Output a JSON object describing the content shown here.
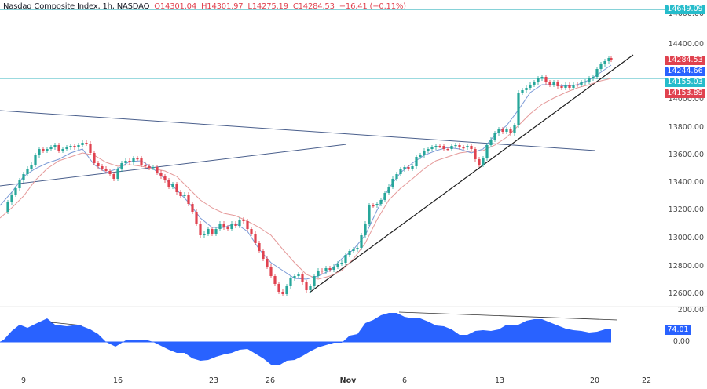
{
  "header": {
    "symbol": "Nasdaq Composite Index, 1h, NASDAQ",
    "open": "O14301.04",
    "high": "H14301.97",
    "low": "L14275.19",
    "close": "C14284.53",
    "change": "−16.41 (−0.11%)"
  },
  "price_axis": {
    "ticks": [
      "14600.00",
      "14400.00",
      "14000.00",
      "13800.00",
      "13600.00",
      "13400.00",
      "13200.00",
      "13000.00",
      "12800.00",
      "12600.00"
    ],
    "tags": [
      {
        "label": "14649.09",
        "color": "#26bccb"
      },
      {
        "label": "14284.53",
        "color": "#e0424f"
      },
      {
        "label": "14244.66",
        "color": "#2962ff"
      },
      {
        "label": "14155.03",
        "color": "#26bccb"
      },
      {
        "label": "14153.89",
        "color": "#e0424f"
      }
    ]
  },
  "oscillator_axis": {
    "ticks": [
      "200.00",
      "0.00"
    ],
    "value_tag": {
      "label": "74.01",
      "color": "#2962ff"
    }
  },
  "time_axis": {
    "labels": [
      "9",
      "16",
      "23",
      "26",
      "Nov",
      "6",
      "13",
      "20",
      "22"
    ]
  },
  "colors": {
    "up": "#26a69a",
    "down": "#e0424f",
    "fast_ma": "#7b9ad6",
    "slow_ma": "#e59a9a",
    "horizontal_line": "#5fc4cc",
    "trendline_black": "#1e1e1e",
    "trendline_blue": "#4a5f8c",
    "oscillator_fill": "#2962ff"
  },
  "chart_data": [
    {
      "type": "candlestick",
      "title": "Nasdaq Composite Index, 1h, NASDAQ",
      "last": {
        "open": 14301.04,
        "high": 14301.97,
        "low": 14275.19,
        "close": 14284.53,
        "change": -16.41,
        "change_pct": -0.11
      },
      "y_range": [
        12500,
        14700
      ],
      "x_labels": [
        "9",
        "16",
        "23",
        "26",
        "Nov",
        "6",
        "13",
        "20",
        "22"
      ],
      "approx_path": [
        {
          "date": "Oct 9",
          "price": 13150
        },
        {
          "date": "Oct 11",
          "price": 13550
        },
        {
          "date": "Oct 12",
          "price": 13700
        },
        {
          "date": "Oct 13",
          "price": 13480
        },
        {
          "date": "Oct 16",
          "price": 13580
        },
        {
          "date": "Oct 17",
          "price": 13620
        },
        {
          "date": "Oct 18",
          "price": 13480
        },
        {
          "date": "Oct 20",
          "price": 13250
        },
        {
          "date": "Oct 23",
          "price": 13100
        },
        {
          "date": "Oct 24",
          "price": 13150
        },
        {
          "date": "Oct 25",
          "price": 12900
        },
        {
          "date": "Oct 26",
          "price": 12620
        },
        {
          "date": "Oct 27",
          "price": 12650
        },
        {
          "date": "Oct 30",
          "price": 12800
        },
        {
          "date": "Nov 1",
          "price": 12950
        },
        {
          "date": "Nov 2",
          "price": 13250
        },
        {
          "date": "Nov 3",
          "price": 13450
        },
        {
          "date": "Nov 6",
          "price": 13600
        },
        {
          "date": "Nov 8",
          "price": 13660
        },
        {
          "date": "Nov 10",
          "price": 13550
        },
        {
          "date": "Nov 13",
          "price": 13800
        },
        {
          "date": "Nov 14",
          "price": 14100
        },
        {
          "date": "Nov 15",
          "price": 14180
        },
        {
          "date": "Nov 16",
          "price": 14100
        },
        {
          "date": "Nov 17",
          "price": 14120
        },
        {
          "date": "Nov 20",
          "price": 14250
        },
        {
          "date": "Nov 21",
          "price": 14284.53
        }
      ],
      "indicators": {
        "fast_ma_last": 14244.66,
        "slow_ma_last": 14153.89
      },
      "annotations": {
        "horizontal_levels": [
          14649.09,
          14155.03
        ],
        "trendlines": [
          "Descending line from ~13950 (Oct 9) to ~13630 (Nov 20)",
          "Ascending line from ~13370 (Oct 9) to ~13680 (Nov 1)",
          "Rising support line from ~12640 (Oct 27) to ~14350 (Nov 22)"
        ]
      }
    },
    {
      "type": "area",
      "title": "Oscillator",
      "y_range": [
        -60,
        200
      ],
      "ticks": [
        200,
        0
      ],
      "last_value": 74.01,
      "approx_values": [
        5,
        50,
        70,
        85,
        90,
        80,
        40,
        -15,
        10,
        15,
        0,
        -30,
        -50,
        -70,
        -60,
        -30,
        -60,
        -75,
        -55,
        -10,
        0,
        20,
        50,
        95,
        120,
        135,
        110,
        110,
        90,
        70,
        20,
        55,
        55,
        120,
        135,
        110,
        80,
        65,
        60,
        74.01
      ],
      "annotations": [
        "Bearish divergence trendlines on oscillator peaks"
      ]
    }
  ]
}
